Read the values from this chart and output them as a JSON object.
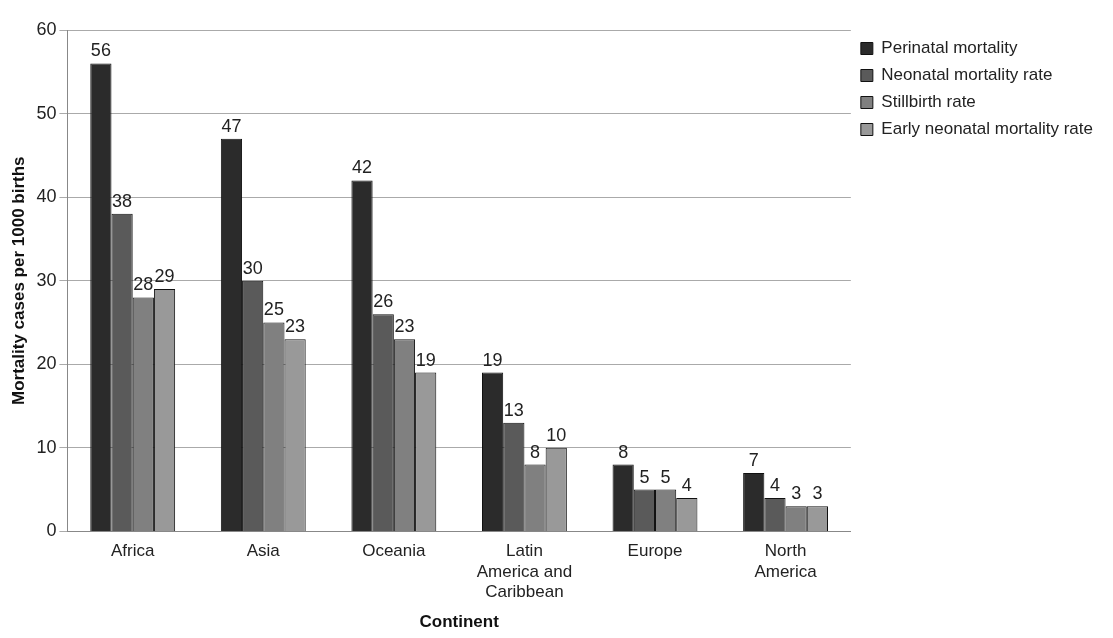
{
  "chart_data": {
    "type": "bar",
    "xlabel": "Continent",
    "ylabel": "Mortality cases per 1000 births",
    "categories": [
      "Africa",
      "Asia",
      "Oceania",
      "Latin America and Caribbean",
      "Europe",
      "North America"
    ],
    "series": [
      {
        "name": "Perinatal mortality",
        "color": "#2b2b2b",
        "values": [
          56,
          47,
          42,
          19,
          8,
          7
        ]
      },
      {
        "name": "Neonatal mortality rate",
        "color": "#5a5a5a",
        "values": [
          38,
          30,
          26,
          13,
          5,
          4
        ]
      },
      {
        "name": "Stillbirth rate",
        "color": "#808080",
        "values": [
          28,
          25,
          23,
          8,
          5,
          3
        ]
      },
      {
        "name": "Early neonatal mortality rate",
        "color": "#999999",
        "values": [
          29,
          23,
          19,
          10,
          4,
          3
        ]
      }
    ],
    "ylim": [
      0,
      60
    ],
    "yticks": [
      0,
      10,
      20,
      30,
      40,
      50,
      60
    ],
    "grid": "y",
    "legend": "top right",
    "data_labels": true
  }
}
